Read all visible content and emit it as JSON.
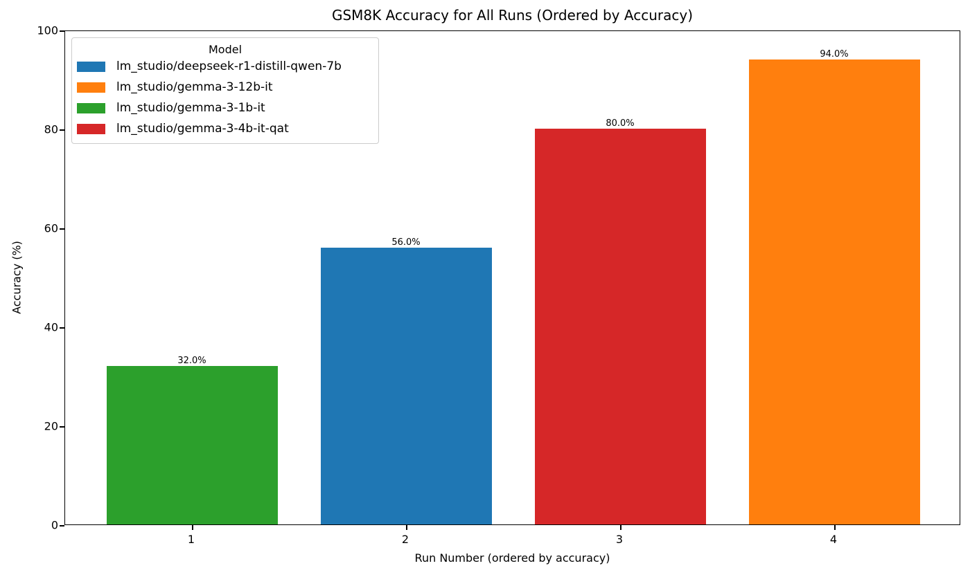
{
  "chart_data": {
    "type": "bar",
    "title": "GSM8K Accuracy for All Runs (Ordered by Accuracy)",
    "xlabel": "Run Number (ordered by accuracy)",
    "ylabel": "Accuracy (%)",
    "ylim": [
      0,
      100
    ],
    "yticks": [
      "0",
      "20",
      "40",
      "60",
      "80",
      "100"
    ],
    "categories": [
      "1",
      "2",
      "3",
      "4"
    ],
    "values": [
      32.0,
      56.0,
      80.0,
      94.0
    ],
    "value_labels": [
      "32.0%",
      "56.0%",
      "80.0%",
      "94.0%"
    ],
    "bar_models": [
      "lm_studio/gemma-3-1b-it",
      "lm_studio/deepseek-r1-distill-qwen-7b",
      "lm_studio/gemma-3-4b-it-qat",
      "lm_studio/gemma-3-12b-it"
    ],
    "bar_colors": [
      "#2ca02c",
      "#1f77b4",
      "#d62728",
      "#ff7f0e"
    ],
    "grid": false,
    "legend": {
      "title": "Model",
      "position": "upper left",
      "entries": [
        {
          "label": "lm_studio/deepseek-r1-distill-qwen-7b",
          "color": "#1f77b4"
        },
        {
          "label": "lm_studio/gemma-3-12b-it",
          "color": "#ff7f0e"
        },
        {
          "label": "lm_studio/gemma-3-1b-it",
          "color": "#2ca02c"
        },
        {
          "label": "lm_studio/gemma-3-4b-it-qat",
          "color": "#d62728"
        }
      ]
    }
  }
}
